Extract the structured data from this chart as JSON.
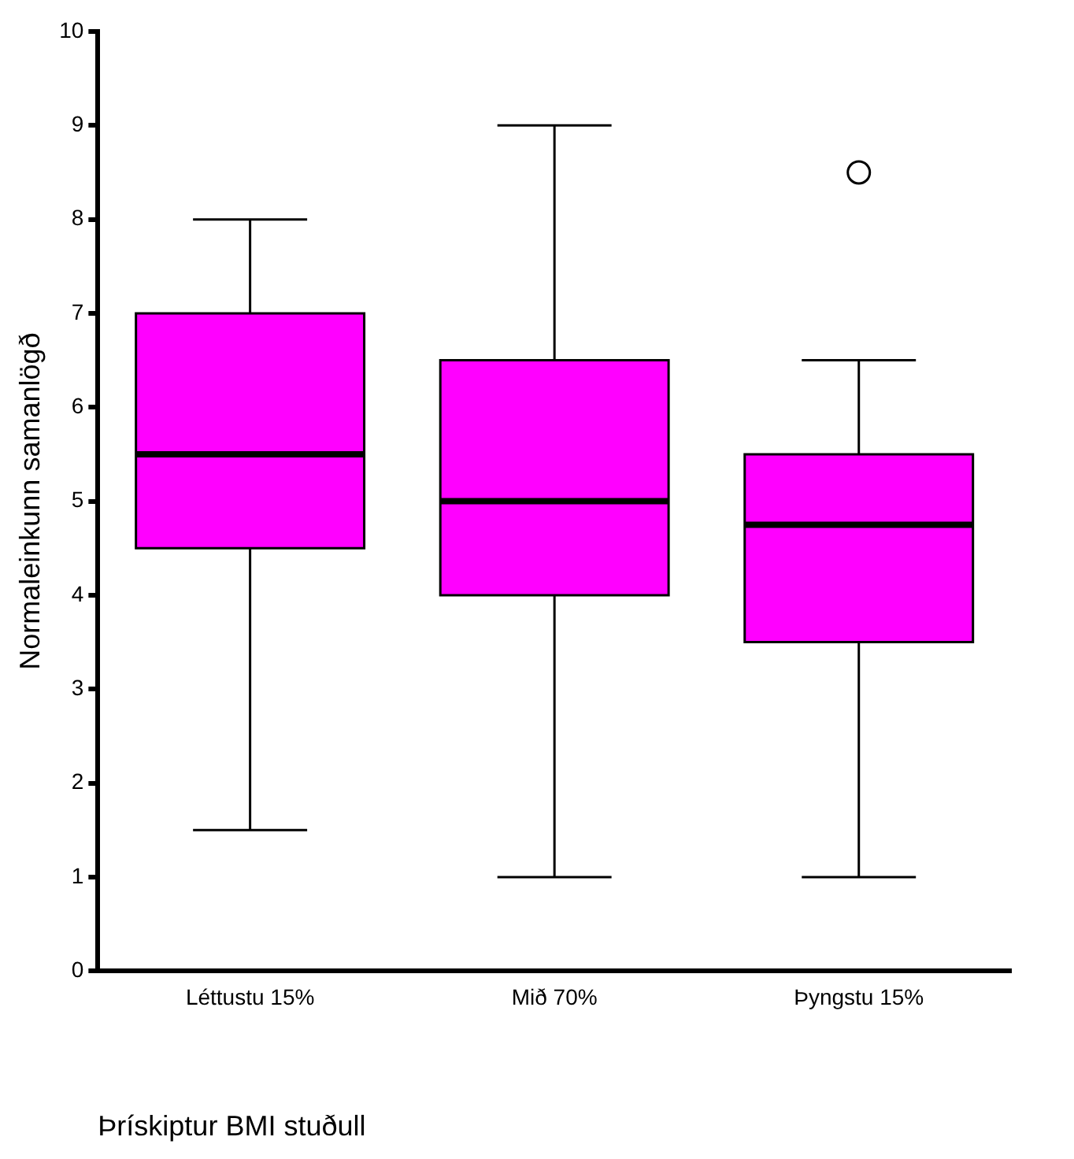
{
  "chart_data": {
    "type": "box",
    "xlabel": "Þrískiptur BMI stuðull",
    "ylabel": "Normaleinkunn samanlögð",
    "categories": [
      "Léttustu 15%",
      "Mið 70%",
      "Þyngstu 15%"
    ],
    "color": "#ff00ff",
    "boxes": [
      {
        "low": 1.5,
        "q1": 4.5,
        "median": 5.5,
        "q3": 7,
        "high": 8
      },
      {
        "low": 1,
        "q1": 4,
        "median": 5,
        "q3": 6.5,
        "high": 9
      },
      {
        "low": 1,
        "q1": 3.5,
        "median": 4.75,
        "q3": 5.5,
        "high": 6.5,
        "outliers": [
          8.5
        ]
      }
    ],
    "ylim": [
      0,
      10
    ],
    "yticks": [
      0,
      1,
      2,
      3,
      4,
      5,
      6,
      7,
      8,
      9,
      10
    ],
    "grid": false,
    "legend": false
  }
}
